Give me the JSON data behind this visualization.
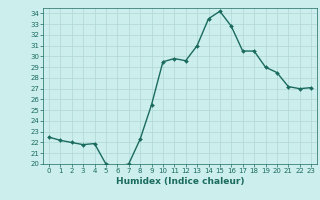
{
  "x": [
    0,
    1,
    2,
    3,
    4,
    5,
    6,
    7,
    8,
    9,
    10,
    11,
    12,
    13,
    14,
    15,
    16,
    17,
    18,
    19,
    20,
    21,
    22,
    23
  ],
  "y": [
    22.5,
    22.2,
    22.0,
    21.8,
    21.9,
    20.0,
    19.8,
    20.0,
    22.3,
    25.5,
    29.5,
    29.8,
    29.6,
    31.0,
    33.5,
    34.2,
    32.8,
    30.5,
    30.5,
    29.0,
    28.5,
    27.2,
    27.0,
    27.1
  ],
  "line_color": "#1a6b5e",
  "marker": "D",
  "marker_size": 2.0,
  "line_width": 1.0,
  "bg_color": "#cceeed",
  "grid_color": "#b0d8d5",
  "xlabel": "Humidex (Indice chaleur)",
  "xlim": [
    -0.5,
    23.5
  ],
  "ylim": [
    20,
    34.5
  ],
  "yticks": [
    20,
    21,
    22,
    23,
    24,
    25,
    26,
    27,
    28,
    29,
    30,
    31,
    32,
    33,
    34
  ],
  "xticks": [
    0,
    1,
    2,
    3,
    4,
    5,
    6,
    7,
    8,
    9,
    10,
    11,
    12,
    13,
    14,
    15,
    16,
    17,
    18,
    19,
    20,
    21,
    22,
    23
  ],
  "tick_color": "#1a6b5e",
  "label_fontsize": 6.5,
  "tick_fontsize": 5.0
}
